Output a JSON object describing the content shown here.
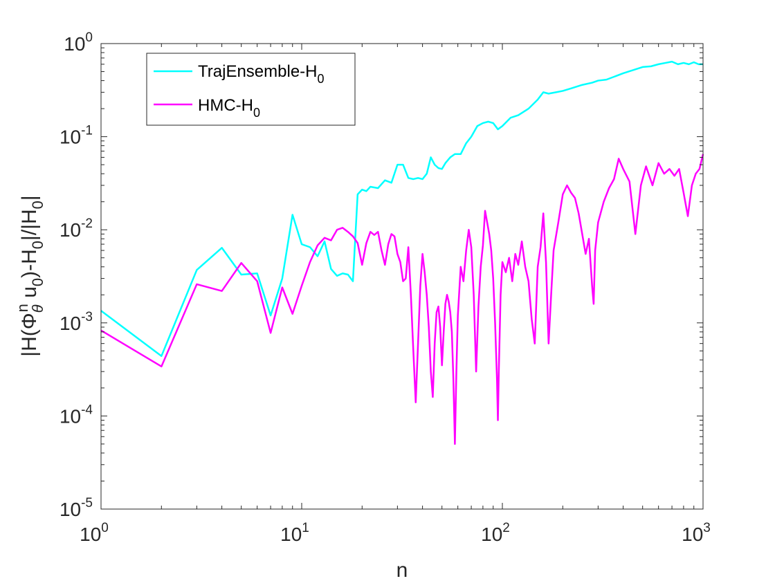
{
  "chart_data": {
    "type": "line",
    "xscale": "log",
    "yscale": "log",
    "xlim": [
      1,
      1000
    ],
    "ylim": [
      1e-05,
      1
    ],
    "xlabel": "n",
    "ylabel": "|H(Φθn u0)-H0|/|H0|",
    "ylabel_parts": {
      "a": "|H(Φ",
      "sub1": "θ",
      "sup1": "n",
      "b": " u",
      "sub2": "0",
      "c": ")-H",
      "sub3": "0",
      "d": "|/|H",
      "sub4": "0",
      "e": "|"
    },
    "x_ticks": [
      {
        "base": "10",
        "exp": "0",
        "value": 1
      },
      {
        "base": "10",
        "exp": "1",
        "value": 10
      },
      {
        "base": "10",
        "exp": "2",
        "value": 100
      },
      {
        "base": "10",
        "exp": "3",
        "value": 1000
      }
    ],
    "y_ticks": [
      {
        "base": "10",
        "exp": "0",
        "value": 1
      },
      {
        "base": "10",
        "exp": "-1",
        "value": 0.1
      },
      {
        "base": "10",
        "exp": "-2",
        "value": 0.01
      },
      {
        "base": "10",
        "exp": "-3",
        "value": 0.001
      },
      {
        "base": "10",
        "exp": "-4",
        "value": 0.0001
      },
      {
        "base": "10",
        "exp": "-5",
        "value": 1e-05
      }
    ],
    "grid": false,
    "legend_position": "top-left",
    "series": [
      {
        "name": "TrajEnsemble-H0",
        "legend_main": "TrajEnsemble-H",
        "legend_sub": "0",
        "color": "#00FFFF",
        "points": [
          [
            1,
            0.00135
          ],
          [
            2,
            0.00044
          ],
          [
            3,
            0.0037
          ],
          [
            4,
            0.0064
          ],
          [
            5,
            0.0033
          ],
          [
            6,
            0.0034
          ],
          [
            7,
            0.0012
          ],
          [
            8,
            0.003
          ],
          [
            9,
            0.0145
          ],
          [
            10,
            0.007
          ],
          [
            11,
            0.0065
          ],
          [
            12,
            0.0052
          ],
          [
            13,
            0.0075
          ],
          [
            14,
            0.0038
          ],
          [
            15,
            0.0032
          ],
          [
            16,
            0.0034
          ],
          [
            17,
            0.0033
          ],
          [
            18,
            0.0028
          ],
          [
            19,
            0.024
          ],
          [
            20,
            0.027
          ],
          [
            21,
            0.026
          ],
          [
            22,
            0.029
          ],
          [
            24,
            0.028
          ],
          [
            26,
            0.034
          ],
          [
            28,
            0.032
          ],
          [
            30,
            0.05
          ],
          [
            32,
            0.05
          ],
          [
            34,
            0.036
          ],
          [
            36,
            0.035
          ],
          [
            38,
            0.036
          ],
          [
            40,
            0.035
          ],
          [
            42,
            0.04
          ],
          [
            44,
            0.06
          ],
          [
            46,
            0.05
          ],
          [
            48,
            0.046
          ],
          [
            50,
            0.045
          ],
          [
            52,
            0.052
          ],
          [
            55,
            0.06
          ],
          [
            58,
            0.065
          ],
          [
            62,
            0.065
          ],
          [
            66,
            0.085
          ],
          [
            70,
            0.1
          ],
          [
            75,
            0.13
          ],
          [
            80,
            0.14
          ],
          [
            85,
            0.145
          ],
          [
            90,
            0.14
          ],
          [
            95,
            0.12
          ],
          [
            100,
            0.13
          ],
          [
            110,
            0.16
          ],
          [
            120,
            0.17
          ],
          [
            135,
            0.2
          ],
          [
            150,
            0.25
          ],
          [
            160,
            0.3
          ],
          [
            170,
            0.29
          ],
          [
            185,
            0.3
          ],
          [
            200,
            0.31
          ],
          [
            220,
            0.33
          ],
          [
            250,
            0.36
          ],
          [
            280,
            0.38
          ],
          [
            300,
            0.4
          ],
          [
            330,
            0.41
          ],
          [
            360,
            0.44
          ],
          [
            400,
            0.48
          ],
          [
            450,
            0.52
          ],
          [
            500,
            0.56
          ],
          [
            550,
            0.57
          ],
          [
            600,
            0.6
          ],
          [
            650,
            0.62
          ],
          [
            700,
            0.64
          ],
          [
            750,
            0.6
          ],
          [
            800,
            0.62
          ],
          [
            850,
            0.6
          ],
          [
            900,
            0.63
          ],
          [
            950,
            0.6
          ],
          [
            1000,
            0.6
          ]
        ]
      },
      {
        "name": "HMC-H0",
        "legend_main": "HMC-H",
        "legend_sub": "0",
        "color": "#FF00FF",
        "points": [
          [
            1,
            0.00083
          ],
          [
            2,
            0.00034
          ],
          [
            3,
            0.0026
          ],
          [
            4,
            0.0022
          ],
          [
            5,
            0.0044
          ],
          [
            6,
            0.0028
          ],
          [
            7,
            0.00078
          ],
          [
            8,
            0.0024
          ],
          [
            9,
            0.00125
          ],
          [
            10,
            0.0025
          ],
          [
            11,
            0.0045
          ],
          [
            12,
            0.0068
          ],
          [
            13,
            0.0082
          ],
          [
            14,
            0.0077
          ],
          [
            15,
            0.01
          ],
          [
            16,
            0.0105
          ],
          [
            17,
            0.0095
          ],
          [
            18,
            0.0085
          ],
          [
            19,
            0.0072
          ],
          [
            20,
            0.0042
          ],
          [
            21,
            0.0072
          ],
          [
            22,
            0.0095
          ],
          [
            23,
            0.0088
          ],
          [
            24,
            0.0095
          ],
          [
            25,
            0.006
          ],
          [
            26,
            0.0042
          ],
          [
            27,
            0.007
          ],
          [
            28,
            0.009
          ],
          [
            29,
            0.0085
          ],
          [
            30,
            0.0055
          ],
          [
            31,
            0.0045
          ],
          [
            32,
            0.0028
          ],
          [
            33,
            0.003
          ],
          [
            34,
            0.0065
          ],
          [
            35,
            0.002
          ],
          [
            36,
            0.0005
          ],
          [
            37,
            0.00014
          ],
          [
            38,
            0.0006
          ],
          [
            39,
            0.0025
          ],
          [
            40,
            0.0055
          ],
          [
            41,
            0.0035
          ],
          [
            42,
            0.002
          ],
          [
            43,
            0.0009
          ],
          [
            44,
            0.0003
          ],
          [
            45,
            0.00016
          ],
          [
            46,
            0.0006
          ],
          [
            47,
            0.0013
          ],
          [
            48,
            0.0015
          ],
          [
            49,
            0.0009
          ],
          [
            50,
            0.00035
          ],
          [
            51,
            0.0008
          ],
          [
            52,
            0.0016
          ],
          [
            53,
            0.002
          ],
          [
            54,
            0.0017
          ],
          [
            55,
            0.0013
          ],
          [
            56,
            0.0008
          ],
          [
            57,
            0.00025
          ],
          [
            58,
            5e-05
          ],
          [
            59,
            0.0003
          ],
          [
            60,
            0.0012
          ],
          [
            62,
            0.004
          ],
          [
            64,
            0.0028
          ],
          [
            66,
            0.006
          ],
          [
            68,
            0.01
          ],
          [
            70,
            0.0065
          ],
          [
            72,
            0.002
          ],
          [
            74,
            0.0003
          ],
          [
            76,
            0.0015
          ],
          [
            78,
            0.004
          ],
          [
            80,
            0.0068
          ],
          [
            82,
            0.016
          ],
          [
            84,
            0.012
          ],
          [
            86,
            0.009
          ],
          [
            88,
            0.006
          ],
          [
            90,
            0.003
          ],
          [
            92,
            0.001
          ],
          [
            94,
            0.00025
          ],
          [
            95,
            9e-05
          ],
          [
            96,
            0.0003
          ],
          [
            98,
            0.002
          ],
          [
            100,
            0.0045
          ],
          [
            104,
            0.0035
          ],
          [
            108,
            0.005
          ],
          [
            112,
            0.0028
          ],
          [
            116,
            0.0055
          ],
          [
            120,
            0.0042
          ],
          [
            125,
            0.0075
          ],
          [
            130,
            0.004
          ],
          [
            135,
            0.0028
          ],
          [
            140,
            0.0011
          ],
          [
            145,
            0.0006
          ],
          [
            150,
            0.004
          ],
          [
            155,
            0.0065
          ],
          [
            160,
            0.015
          ],
          [
            165,
            0.0045
          ],
          [
            170,
            0.0006
          ],
          [
            175,
            0.002
          ],
          [
            180,
            0.006
          ],
          [
            190,
            0.012
          ],
          [
            200,
            0.024
          ],
          [
            210,
            0.03
          ],
          [
            220,
            0.025
          ],
          [
            230,
            0.022
          ],
          [
            240,
            0.015
          ],
          [
            250,
            0.009
          ],
          [
            260,
            0.0055
          ],
          [
            270,
            0.008
          ],
          [
            280,
            0.0025
          ],
          [
            285,
            0.0016
          ],
          [
            290,
            0.006
          ],
          [
            300,
            0.012
          ],
          [
            320,
            0.02
          ],
          [
            340,
            0.028
          ],
          [
            360,
            0.035
          ],
          [
            380,
            0.058
          ],
          [
            400,
            0.045
          ],
          [
            430,
            0.033
          ],
          [
            460,
            0.009
          ],
          [
            490,
            0.03
          ],
          [
            520,
            0.048
          ],
          [
            560,
            0.03
          ],
          [
            600,
            0.052
          ],
          [
            640,
            0.04
          ],
          [
            680,
            0.045
          ],
          [
            720,
            0.038
          ],
          [
            760,
            0.045
          ],
          [
            800,
            0.025
          ],
          [
            840,
            0.014
          ],
          [
            880,
            0.03
          ],
          [
            920,
            0.04
          ],
          [
            960,
            0.045
          ],
          [
            1000,
            0.065
          ]
        ]
      }
    ]
  }
}
